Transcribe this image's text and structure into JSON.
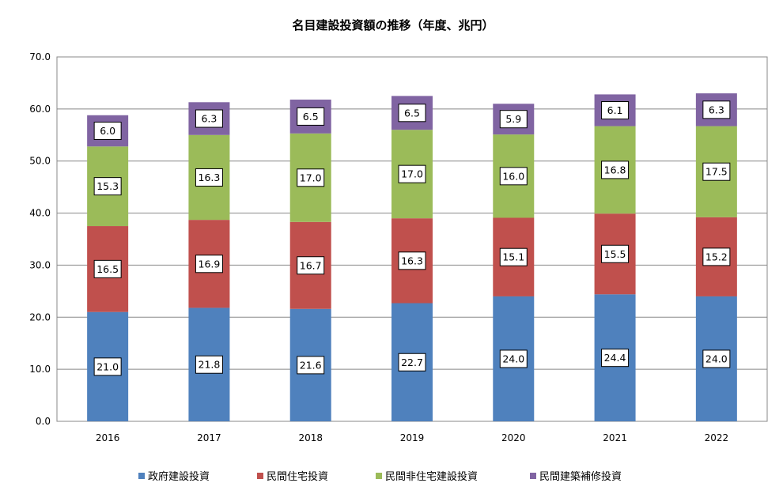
{
  "chart_data": {
    "type": "bar",
    "stacked": true,
    "title": "名目建設投資額の推移（年度、兆円）",
    "xlabel": "",
    "ylabel": "",
    "ylim": [
      0,
      70
    ],
    "yticks": [
      "0.0",
      "10.0",
      "20.0",
      "30.0",
      "40.0",
      "50.0",
      "60.0",
      "70.0"
    ],
    "grid": true,
    "legend_position": "bottom",
    "categories": [
      "2016",
      "2017",
      "2018",
      "2019",
      "2020",
      "2021",
      "2022"
    ],
    "series": [
      {
        "name": "政府建設投資",
        "color": "#4F81BD",
        "values": [
          21.0,
          21.8,
          21.6,
          22.7,
          24.0,
          24.4,
          24.0
        ]
      },
      {
        "name": "民間住宅投資",
        "color": "#C0504D",
        "values": [
          16.5,
          16.9,
          16.7,
          16.3,
          15.1,
          15.5,
          15.2
        ]
      },
      {
        "name": "民間非住宅建設投資",
        "color": "#9BBB59",
        "values": [
          15.3,
          16.3,
          17.0,
          17.0,
          16.0,
          16.8,
          17.5
        ]
      },
      {
        "name": "民間建築補修投資",
        "color": "#8064A2",
        "values": [
          6.0,
          6.3,
          6.5,
          6.5,
          5.9,
          6.1,
          6.3
        ]
      }
    ]
  }
}
